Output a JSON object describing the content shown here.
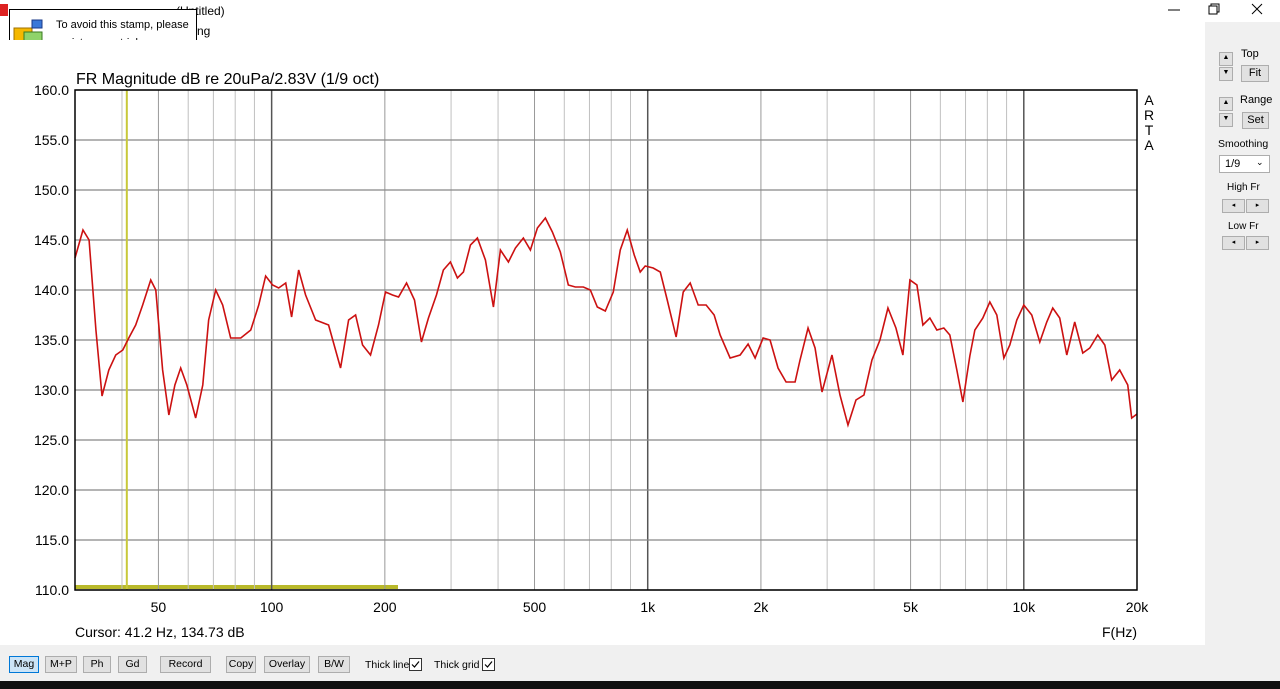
{
  "window": {
    "title": "(Untitled)",
    "menu": "ng"
  },
  "stamp": {
    "line1": "To avoid this stamp, please",
    "line2": "register your trial copy"
  },
  "chart_data": {
    "type": "line",
    "title": "FR Magnitude dB re 20uPa/2.83V (1/9 oct)",
    "side_label": "ARTA",
    "x_label": "F(Hz)",
    "cursor_label": "Cursor: 41.2 Hz, 134.73 dB",
    "cursor": {
      "x": 41.2,
      "y": 134.73
    },
    "xscale": "log",
    "xlim": [
      30,
      20000
    ],
    "ylim": [
      110,
      160
    ],
    "xticks": [
      50,
      100,
      200,
      500,
      {
        "value": 1000,
        "label": "1k"
      },
      {
        "value": 2000,
        "label": "2k"
      },
      {
        "value": 5000,
        "label": "5k"
      },
      {
        "value": 10000,
        "label": "10k"
      },
      {
        "value": 20000,
        "label": "20k"
      }
    ],
    "xminor": [
      30,
      40,
      60,
      70,
      80,
      90,
      300,
      400,
      600,
      700,
      800,
      900,
      3000,
      4000,
      6000,
      7000,
      8000,
      9000
    ],
    "yticks": [
      {
        "value": 110,
        "label": "110.0"
      },
      {
        "value": 115,
        "label": "115.0"
      },
      {
        "value": 120,
        "label": "120.0"
      },
      {
        "value": 125,
        "label": "125.0"
      },
      {
        "value": 130,
        "label": "130.0"
      },
      {
        "value": 135,
        "label": "135.0"
      },
      {
        "value": 140,
        "label": "140.0"
      },
      {
        "value": 145,
        "label": "145.0"
      },
      {
        "value": 150,
        "label": "150.0"
      },
      {
        "value": 155,
        "label": "155.0"
      },
      {
        "value": 160,
        "label": "160.0"
      }
    ],
    "grid": true,
    "color": "#cc1111",
    "x": [
      30,
      31.5,
      32.7,
      34.1,
      35.4,
      36.9,
      38.5,
      40.2,
      41.7,
      43.5,
      45.4,
      47.7,
      49.2,
      51.3,
      53.3,
      55.3,
      57.3,
      59.5,
      62.8,
      65.6,
      68,
      71,
      74.1,
      77.8,
      82.8,
      88,
      92.4,
      96.4,
      100.6,
      104.4,
      109,
      113,
      118,
      123.1,
      130.9,
      141.7,
      152.5,
      160.2,
      167.2,
      174.5,
      183.2,
      192.4,
      200.8,
      209.6,
      217.5,
      228.4,
      239.8,
      250.2,
      261.2,
      274.3,
      286.2,
      298.8,
      311.9,
      323.6,
      337.7,
      352.5,
      370.2,
      388.8,
      405.8,
      426.2,
      444.8,
      467,
      487.6,
      508.9,
      534.4,
      557.8,
      585.7,
      615,
      641.9,
      674.2,
      703.7,
      734.5,
      771.3,
      809.9,
      845.3,
      882.3,
      920.8,
      955.2,
      984.8,
      1034,
      1080,
      1127,
      1190,
      1243,
      1297,
      1362,
      1430,
      1502,
      1558,
      1656,
      1761,
      1849,
      1930,
      2027,
      2115,
      2221,
      2333,
      2465,
      2541,
      2669,
      2786,
      2907,
      3090,
      3245,
      3408,
      3579,
      3758,
      3947,
      4145,
      4353,
      4571,
      4770,
      4980,
      5198,
      5391,
      5627,
      5873,
      6129,
      6358,
      6637,
      6887,
      7187,
      7411,
      7783,
      8123,
      8478,
      8851,
      9180,
      9581,
      10000,
      10500,
      11030,
      11510,
      11940,
      12460,
      13010,
      13660,
      14350,
      14980,
      15730,
      16420,
      17130,
      17990,
      18900,
      19360,
      20000
    ],
    "values": [
      143.2,
      146,
      145,
      136,
      129.4,
      132,
      133.5,
      134,
      135.2,
      136.5,
      138.5,
      141,
      140,
      132,
      127.5,
      130.5,
      132.2,
      130.5,
      127.2,
      130.5,
      137,
      140,
      138.5,
      135.2,
      135.2,
      136,
      138.5,
      141.4,
      140.5,
      140.2,
      140.7,
      137.3,
      142,
      139.5,
      137,
      136.5,
      132.2,
      137,
      137.5,
      134.5,
      133.5,
      136.5,
      139.8,
      139.5,
      139.3,
      140.7,
      139,
      134.8,
      137.2,
      139.5,
      142,
      142.8,
      141.2,
      141.8,
      144.5,
      145.2,
      143,
      138.3,
      144,
      142.8,
      144.2,
      145.2,
      144,
      146.2,
      147.2,
      145.8,
      143.8,
      140.5,
      140.3,
      140.3,
      140,
      138.3,
      137.9,
      139.8,
      144,
      146,
      143.5,
      141.8,
      142.4,
      142.2,
      141.8,
      139,
      135.3,
      139.8,
      140.7,
      138.5,
      138.5,
      137.5,
      135.5,
      133.2,
      133.5,
      134.6,
      133.2,
      135.2,
      135,
      132.2,
      130.8,
      130.8,
      133,
      136.2,
      134.2,
      129.8,
      133.5,
      129.5,
      126.5,
      129,
      129.5,
      133,
      135,
      138.2,
      136.2,
      133.5,
      141,
      140.5,
      136.5,
      137.2,
      136,
      136.2,
      135.5,
      132,
      128.8,
      133.4,
      136,
      137.2,
      138.8,
      137.5,
      133.2,
      134.5,
      137,
      138.5,
      137.5,
      134.8,
      136.8,
      138.2,
      137.2,
      133.5,
      136.8,
      133.7,
      134.2,
      135.5,
      134.5,
      131,
      132,
      130.5,
      127.2,
      127.6
    ]
  },
  "panel": {
    "top": "Top",
    "fit": "Fit",
    "range": "Range",
    "set": "Set",
    "smoothing": "Smoothing",
    "smoothing_value": "1/9",
    "high": "High Fr",
    "low": "Low Fr"
  },
  "toolbar": {
    "buttons": [
      "Mag",
      "M+P",
      "Ph",
      "Gd",
      "Record",
      "Copy",
      "Overlay",
      "B/W"
    ],
    "thick_line": "Thick line",
    "thick_grid": "Thick grid"
  }
}
